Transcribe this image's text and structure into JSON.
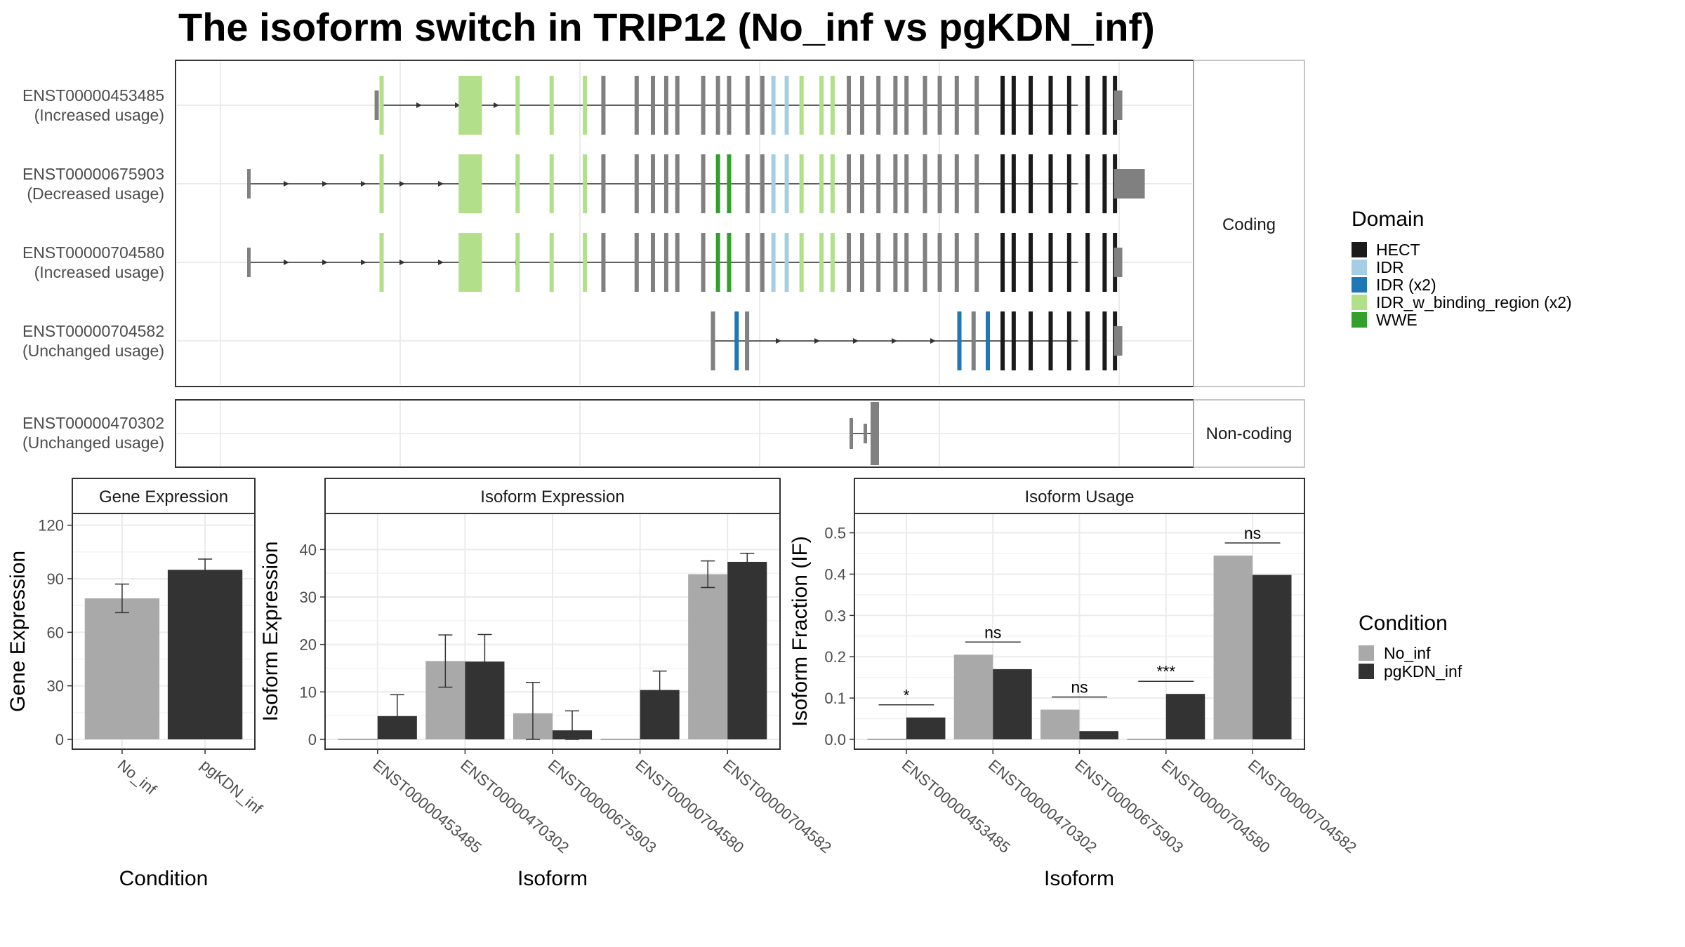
{
  "title": "The isoform switch in TRIP12 (No_inf vs pgKDN_inf)",
  "colors": {
    "No_inf": "#a9a9a9",
    "pgKDN_inf": "#333333",
    "exon": "#808080",
    "HECT": "#1a1a1a",
    "IDR": "#a6cee3",
    "IDR (x2)": "#1f78b4",
    "IDR_w_binding_region (x2)": "#b2df8a",
    "WWE": "#33a02c"
  },
  "structure": {
    "coding_strip": "Coding",
    "noncoding_strip": "Non-coding",
    "tracks": [
      {
        "id": "ENST00000453485",
        "status": "(Increased usage)",
        "group": "coding",
        "start": 0.18
      },
      {
        "id": "ENST00000675903",
        "status": "(Decreased usage)",
        "group": "coding",
        "start": 0.04,
        "long_utr": true
      },
      {
        "id": "ENST00000704580",
        "status": "(Increased usage)",
        "group": "coding",
        "start": 0.04
      },
      {
        "id": "ENST00000704582",
        "status": "(Unchanged usage)",
        "group": "coding",
        "start": 0.53,
        "idr_x2": true
      },
      {
        "id": "ENST00000470302",
        "status": "(Unchanged usage)",
        "group": "noncoding"
      }
    ]
  },
  "legend": {
    "domain_title": "Domain",
    "domains": [
      {
        "label": "HECT",
        "color_key": "HECT"
      },
      {
        "label": "IDR",
        "color_key": "IDR"
      },
      {
        "label": "IDR (x2)",
        "color_key": "IDR (x2)"
      },
      {
        "label": "IDR_w_binding_region (x2)",
        "color_key": "IDR_w_binding_region (x2)"
      },
      {
        "label": "WWE",
        "color_key": "WWE"
      }
    ],
    "condition_title": "Condition",
    "conditions": [
      {
        "label": "No_inf",
        "color_key": "No_inf"
      },
      {
        "label": "pgKDN_inf",
        "color_key": "pgKDN_inf"
      }
    ]
  },
  "chart_data": [
    {
      "type": "bar",
      "strip": "Gene Expression",
      "ylabel": "Gene Expression",
      "xlabel": "Condition",
      "ylim": [
        0,
        125
      ],
      "yticks": [
        0,
        30,
        60,
        90,
        120
      ],
      "categories": [
        "No_inf",
        "pgKDN_inf"
      ],
      "series": [
        {
          "name": "No_inf",
          "values": [
            79,
            null
          ],
          "err": [
            8,
            null
          ]
        },
        {
          "name": "pgKDN_inf",
          "values": [
            null,
            95
          ],
          "err": [
            null,
            6
          ]
        }
      ]
    },
    {
      "type": "bar",
      "strip": "Isoform Expression",
      "ylabel": "Isoform Expression",
      "xlabel": "Isoform",
      "ylim": [
        0,
        47
      ],
      "yticks": [
        0,
        10,
        20,
        30,
        40
      ],
      "categories": [
        "ENST00000453485",
        "ENST00000470302",
        "ENST00000675903",
        "ENST00000704580",
        "ENST00000704582"
      ],
      "series": [
        {
          "name": "No_inf",
          "values": [
            0,
            16.5,
            5.5,
            0,
            34.8
          ],
          "err": [
            0,
            5.5,
            6.5,
            0,
            2.8
          ]
        },
        {
          "name": "pgKDN_inf",
          "values": [
            4.9,
            16.4,
            1.9,
            10.4,
            37.4
          ],
          "err": [
            4.5,
            5.7,
            4.1,
            4.0,
            1.8
          ]
        }
      ]
    },
    {
      "type": "bar",
      "strip": "Isoform Usage",
      "ylabel": "Isoform Fraction (IF)",
      "xlabel": "Isoform",
      "ylim": [
        0,
        0.54
      ],
      "yticks": [
        0.0,
        0.1,
        0.2,
        0.3,
        0.4,
        0.5
      ],
      "ytick_labels": [
        "0.0",
        "0.1",
        "0.2",
        "0.3",
        "0.4",
        "0.5"
      ],
      "categories": [
        "ENST00000453485",
        "ENST00000470302",
        "ENST00000675903",
        "ENST00000704580",
        "ENST00000704582"
      ],
      "series": [
        {
          "name": "No_inf",
          "values": [
            0,
            0.205,
            0.072,
            0,
            0.445
          ]
        },
        {
          "name": "pgKDN_inf",
          "values": [
            0.053,
            0.17,
            0.02,
            0.11,
            0.398
          ]
        }
      ],
      "significance": [
        "*",
        "ns",
        "ns",
        "***",
        "ns"
      ]
    }
  ]
}
